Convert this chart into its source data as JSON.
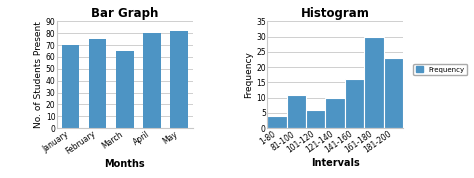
{
  "bar_categories": [
    "January",
    "February",
    "March",
    "April",
    "May"
  ],
  "bar_values": [
    70,
    75,
    65,
    80,
    82
  ],
  "bar_color": "#4d94c4",
  "bar_title": "Bar Graph",
  "bar_xlabel": "Months",
  "bar_ylabel": "No. of Students Present",
  "bar_ylim": [
    0,
    90
  ],
  "bar_yticks": [
    0,
    10,
    20,
    30,
    40,
    50,
    60,
    70,
    80,
    90
  ],
  "hist_categories": [
    "1-80",
    "81-100",
    "101-120",
    "121-140",
    "141-160",
    "161-180",
    "181-200"
  ],
  "hist_values": [
    4,
    11,
    6,
    10,
    16,
    30,
    23
  ],
  "hist_color": "#4d94c4",
  "hist_title": "Histogram",
  "hist_xlabel": "Intervals",
  "hist_ylabel": "Frequency",
  "hist_ylim": [
    0,
    35
  ],
  "hist_yticks": [
    0,
    5,
    10,
    15,
    20,
    25,
    30,
    35
  ],
  "bg_color": "#FFFFFF",
  "plot_bg_color": "#FFFFFF",
  "grid_color": "#C8C8C8",
  "title_fontsize": 8.5,
  "label_fontsize": 7,
  "ylabel_fontsize": 6.5,
  "tick_fontsize": 5.5,
  "legend_label": "Frequency"
}
